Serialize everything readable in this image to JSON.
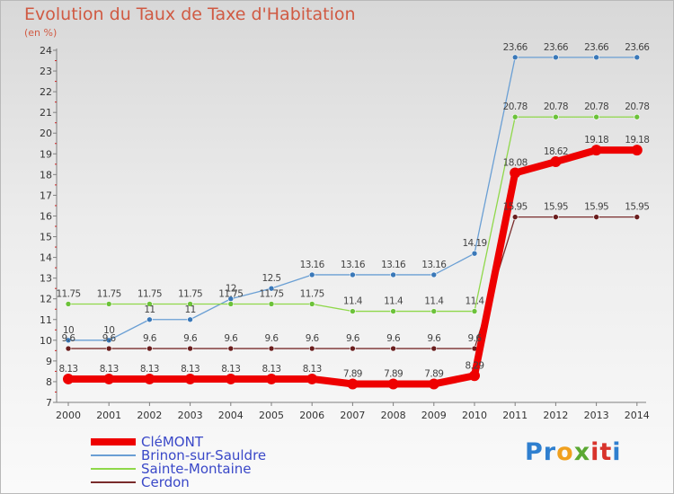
{
  "header": {
    "title": "Evolution du Taux de Taxe d'Habitation",
    "unit": "(en %)"
  },
  "logo": {
    "text": "Proxiti",
    "colors": [
      "#2f7fcf",
      "#2f7fcf",
      "#f0a01e",
      "#5aa832",
      "#d8332b",
      "#d8332b",
      "#2f7fcf"
    ]
  },
  "chart_data": {
    "type": "line",
    "x": [
      2000,
      2001,
      2002,
      2003,
      2004,
      2005,
      2006,
      2007,
      2008,
      2009,
      2010,
      2011,
      2012,
      2013,
      2014
    ],
    "ylim": [
      7,
      24
    ],
    "yticks": [
      7,
      8,
      9,
      10,
      11,
      12,
      13,
      14,
      15,
      16,
      17,
      18,
      19,
      20,
      21,
      22,
      23,
      24
    ],
    "grid": false,
    "legend_position": "bottom-left",
    "series": [
      {
        "name": "Brinon-sur-Sauldre",
        "color": "#6a9fd4",
        "marker": "#3a78b8",
        "values": [
          10,
          10,
          11,
          11,
          12,
          12.5,
          13.16,
          13.16,
          13.16,
          13.16,
          14.19,
          23.66,
          23.66,
          23.66,
          23.66
        ],
        "labels": [
          "10",
          "10",
          "11",
          "11",
          "12",
          "12.5",
          "13.16",
          "13.16",
          "13.16",
          "13.16",
          "14.19",
          "23.66",
          "23.66",
          "23.66",
          "23.66"
        ]
      },
      {
        "name": "Sainte-Montaine",
        "color": "#8fd84a",
        "marker": "#6cc23a",
        "values": [
          11.75,
          11.75,
          11.75,
          11.75,
          11.75,
          11.75,
          11.75,
          11.4,
          11.4,
          11.4,
          11.4,
          20.78,
          20.78,
          20.78,
          20.78
        ],
        "labels": [
          "11.75",
          "11.75",
          "11.75",
          "11.75",
          "11.75",
          "11.75",
          "11.75",
          "11.4",
          "11.4",
          "11.4",
          "11.4",
          "20.78",
          "20.78",
          "20.78",
          "20.78"
        ]
      },
      {
        "name": "Cerdon",
        "color": "#7a2c2c",
        "marker": "#6a1e1e",
        "values": [
          9.6,
          9.6,
          9.6,
          9.6,
          9.6,
          9.6,
          9.6,
          9.6,
          9.6,
          9.6,
          9.6,
          15.95,
          15.95,
          15.95,
          15.95
        ],
        "labels": [
          "9.6",
          "9.6",
          "9.6",
          "9.6",
          "9.6",
          "9.6",
          "9.6",
          "9.6",
          "9.6",
          "9.6",
          "9.6",
          "15.95",
          "15.95",
          "15.95",
          "15.95"
        ]
      },
      {
        "name": "CléMONT",
        "color": "#ee0000",
        "marker": "#ee0000",
        "values": [
          8.13,
          8.13,
          8.13,
          8.13,
          8.13,
          8.13,
          8.13,
          7.89,
          7.89,
          7.89,
          8.29,
          18.08,
          18.62,
          19.18,
          19.18
        ],
        "labels": [
          "8.13",
          "8.13",
          "8.13",
          "8.13",
          "8.13",
          "8.13",
          "8.13",
          "7.89",
          "7.89",
          "7.89",
          "8.29",
          "18.08",
          "18.62",
          "19.18",
          "19.18"
        ]
      }
    ]
  },
  "legend": {
    "items": [
      {
        "name": "CléMONT",
        "color": "#ee0000"
      },
      {
        "name": "Brinon-sur-Sauldre",
        "color": "#6a9fd4"
      },
      {
        "name": "Sainte-Montaine",
        "color": "#8fd84a"
      },
      {
        "name": "Cerdon",
        "color": "#7a2c2c"
      }
    ]
  }
}
